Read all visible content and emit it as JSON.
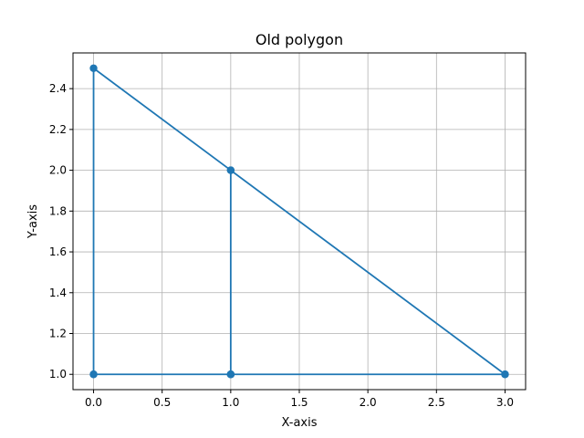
{
  "chart_data": {
    "type": "line",
    "title": "Old polygon",
    "xlabel": "X-axis",
    "ylabel": "Y-axis",
    "xlim": [
      -0.15,
      3.15
    ],
    "ylim": [
      0.925,
      2.575
    ],
    "xticks": [
      0.0,
      0.5,
      1.0,
      1.5,
      2.0,
      2.5,
      3.0
    ],
    "xtick_labels": [
      "0.0",
      "0.5",
      "1.0",
      "1.5",
      "2.0",
      "2.5",
      "3.0"
    ],
    "yticks": [
      1.0,
      1.2,
      1.4,
      1.6,
      1.8,
      2.0,
      2.2,
      2.4
    ],
    "ytick_labels": [
      "1.0",
      "1.2",
      "1.4",
      "1.6",
      "1.8",
      "2.0",
      "2.2",
      "2.4"
    ],
    "grid": true,
    "series": [
      {
        "color": "#1f77b4",
        "marker": "circle",
        "points": [
          [
            0,
            1
          ],
          [
            1,
            1
          ],
          [
            1,
            2
          ],
          [
            0,
            2.5
          ],
          [
            0,
            1
          ],
          [
            1,
            1
          ],
          [
            3,
            1
          ],
          [
            1,
            2
          ],
          [
            1,
            1
          ],
          [
            3,
            1
          ]
        ]
      }
    ]
  }
}
